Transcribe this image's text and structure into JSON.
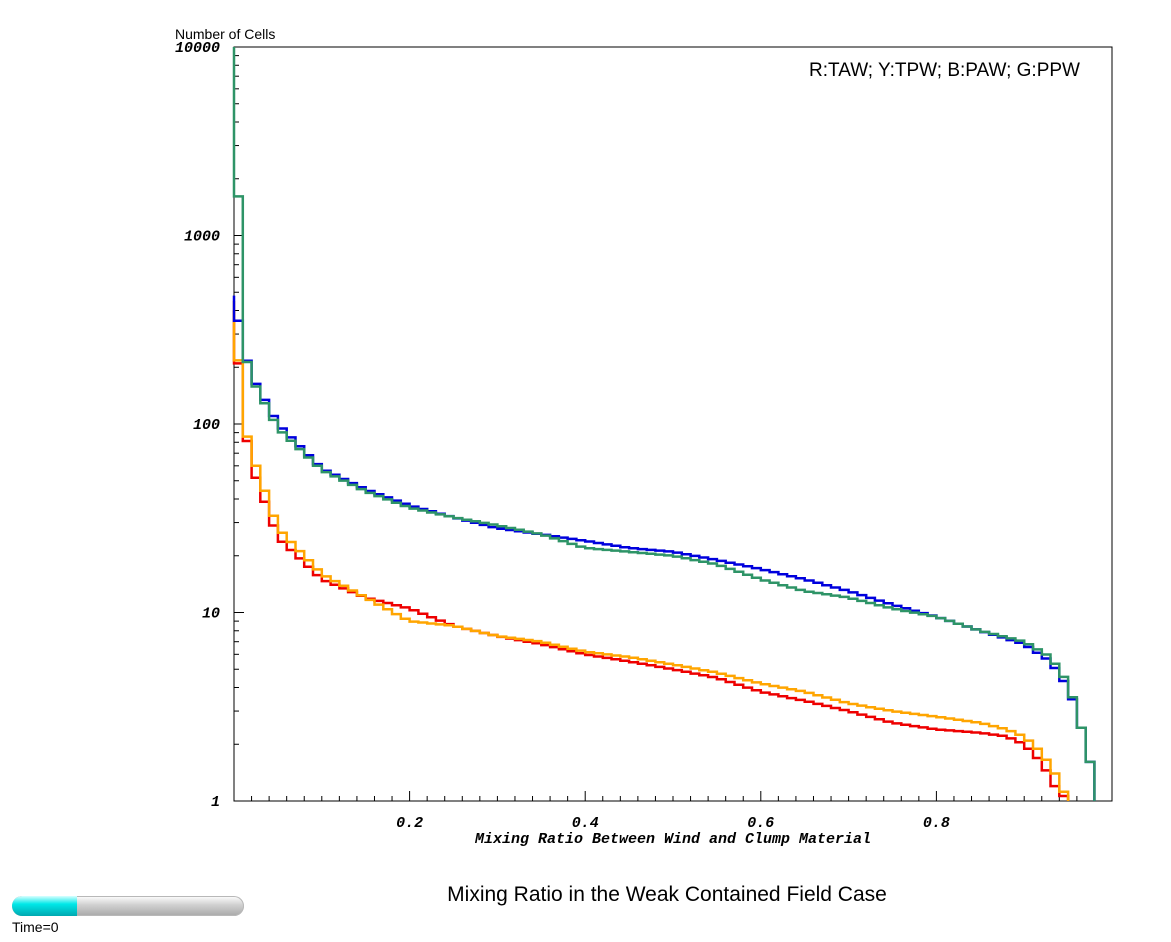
{
  "ylabel": "Number of Cells",
  "title": "Mixing Ratio in the Weak Contained Field Case",
  "time_label": "Time=0",
  "time_progress": 0.28,
  "chart_data": {
    "type": "line",
    "title": "Mixing Ratio in the Weak Contained Field Case",
    "xlabel": "Mixing Ratio Between Wind and Clump Material",
    "ylabel": "Number of Cells",
    "xlim": [
      0,
      1
    ],
    "ylim": [
      1,
      10000
    ],
    "y_scale": "log",
    "x_ticks": [
      "0.2",
      "0.4",
      "0.6",
      "0.8"
    ],
    "y_ticks": [
      "1",
      "10",
      "100",
      "1000",
      "10000"
    ],
    "legend_text": "R:TAW; Y:TPW; B:PAW; G:PPW",
    "legend_position": "top-right",
    "grid": false,
    "series": [
      {
        "name": "TAW",
        "color": "#ee0000",
        "x": [
          0.0,
          0.01,
          0.02,
          0.05,
          0.1,
          0.15,
          0.2,
          0.25,
          0.3,
          0.35,
          0.4,
          0.45,
          0.5,
          0.55,
          0.6,
          0.65,
          0.7,
          0.75,
          0.8,
          0.85,
          0.88,
          0.9,
          0.92,
          0.935,
          0.95
        ],
        "y": [
          400,
          110,
          60,
          25,
          15,
          12,
          10.5,
          8.5,
          7.5,
          6.8,
          6.0,
          5.5,
          5.0,
          4.5,
          3.8,
          3.4,
          3.0,
          2.6,
          2.4,
          2.3,
          2.2,
          2.0,
          1.6,
          1.2,
          1.0
        ]
      },
      {
        "name": "TPW",
        "color": "#ffa500",
        "x": [
          0.0,
          0.01,
          0.02,
          0.05,
          0.1,
          0.15,
          0.2,
          0.25,
          0.3,
          0.35,
          0.4,
          0.45,
          0.5,
          0.55,
          0.6,
          0.65,
          0.7,
          0.75,
          0.8,
          0.85,
          0.88,
          0.9,
          0.92,
          0.935,
          0.95
        ],
        "y": [
          450,
          105,
          70,
          28,
          16,
          12,
          9.0,
          8.5,
          7.5,
          7.0,
          6.2,
          5.8,
          5.3,
          4.8,
          4.2,
          3.8,
          3.3,
          3.0,
          2.8,
          2.6,
          2.4,
          2.2,
          1.8,
          1.4,
          1.0
        ]
      },
      {
        "name": "PAW",
        "color": "#0000dd",
        "x": [
          0.0,
          0.01,
          0.02,
          0.05,
          0.1,
          0.15,
          0.2,
          0.25,
          0.3,
          0.35,
          0.4,
          0.45,
          0.5,
          0.55,
          0.6,
          0.65,
          0.7,
          0.75,
          0.8,
          0.85,
          0.9,
          0.93,
          0.95,
          0.96,
          0.97,
          0.98
        ],
        "y": [
          480,
          260,
          180,
          100,
          58,
          45,
          37,
          32,
          28,
          26,
          24,
          22,
          21,
          19,
          17,
          15,
          13,
          11,
          9.5,
          8.0,
          6.8,
          5.5,
          4.0,
          3.0,
          2.0,
          1.3
        ]
      },
      {
        "name": "PPW",
        "color": "#2e9467",
        "x": [
          0.0,
          0.01,
          0.02,
          0.05,
          0.1,
          0.15,
          0.2,
          0.25,
          0.3,
          0.35,
          0.4,
          0.45,
          0.5,
          0.55,
          0.6,
          0.65,
          0.7,
          0.75,
          0.8,
          0.85,
          0.9,
          0.93,
          0.95,
          0.96,
          0.97,
          0.98
        ],
        "y": [
          10000,
          260,
          175,
          95,
          57,
          44,
          36,
          32,
          29,
          26,
          22,
          21,
          20,
          18,
          15,
          13,
          12,
          10.5,
          9.5,
          8.0,
          7.0,
          5.8,
          4.2,
          3.0,
          2.0,
          1.3
        ]
      }
    ]
  }
}
